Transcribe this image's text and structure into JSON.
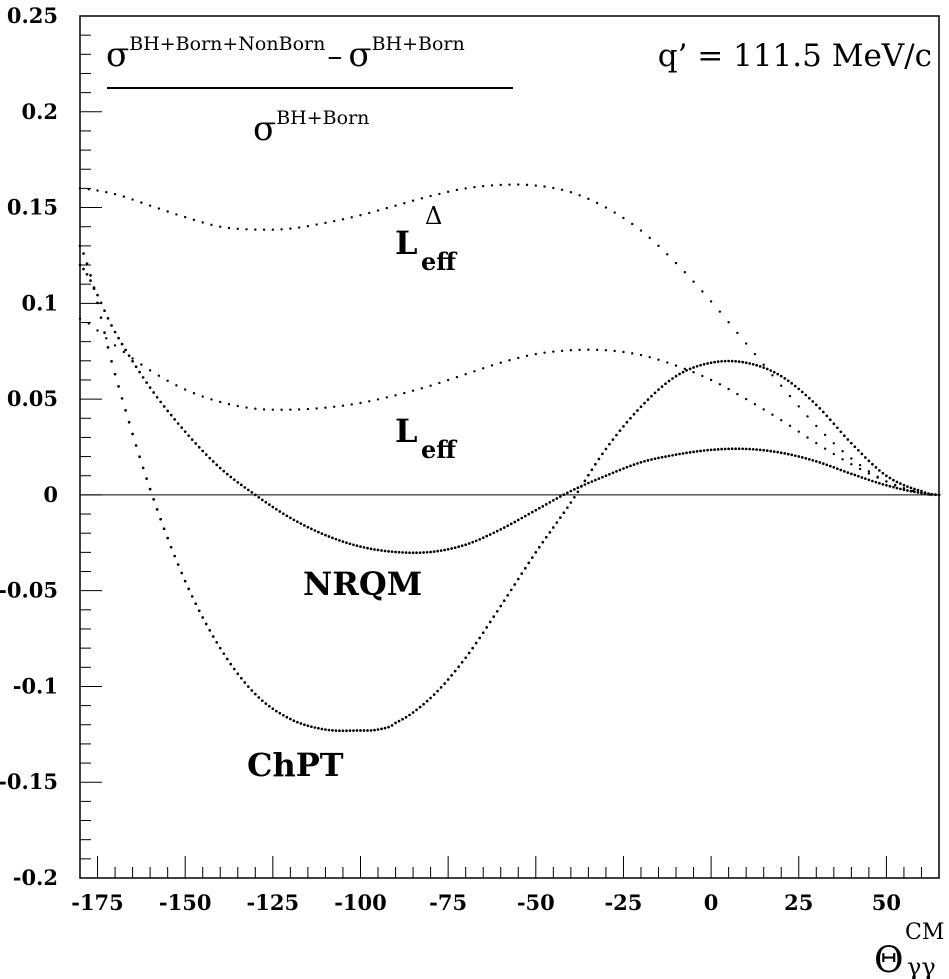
{
  "chart_data": {
    "type": "scatter",
    "xlim": [
      -180,
      65
    ],
    "ylim": [
      -0.2,
      0.25
    ],
    "x_ticks": [
      -175,
      -150,
      -125,
      -100,
      -75,
      -50,
      -25,
      0,
      25,
      50
    ],
    "x_tick_labels": [
      "-175",
      "-150",
      "-125",
      "-100",
      "-75",
      "-50",
      "-25",
      "0",
      "25",
      "50"
    ],
    "y_ticks": [
      -0.2,
      -0.15,
      -0.1,
      -0.05,
      0,
      0.05,
      0.1,
      0.15,
      0.2,
      0.25
    ],
    "y_tick_labels": [
      "-0.2",
      "-0.15",
      "-0.1",
      "-0.05",
      "0",
      "0.05",
      "0.1",
      "0.15",
      "0.2",
      "0.25"
    ],
    "xlabel": {
      "symbol": "Θ",
      "superscript": "CM",
      "subscript": "γγ"
    },
    "ylabel": {
      "numerator_a": "σ",
      "numerator_a_sup": "BH+Born+NonBorn",
      "minus": "–",
      "numerator_b": "σ",
      "numerator_b_sup": "BH+Born",
      "denominator": "σ",
      "denominator_sup": "BH+Born"
    },
    "annotation": "q’ = 111.5 MeV/c",
    "zero_line": true,
    "series": [
      {
        "name": "L_eff^Δ",
        "label_main": "L",
        "label_sub": "eff",
        "label_sup": "Δ",
        "x": [
          -180,
          -170,
          -160,
          -150,
          -140,
          -130,
          -120,
          -110,
          -100,
          -90,
          -80,
          -70,
          -60,
          -50,
          -40,
          -30,
          -20,
          -10,
          0,
          10,
          20,
          30,
          40,
          50,
          60,
          65
        ],
        "y": [
          0.16,
          0.157,
          0.151,
          0.145,
          0.14,
          0.1385,
          0.139,
          0.142,
          0.146,
          0.151,
          0.156,
          0.16,
          0.1618,
          0.1615,
          0.158,
          0.15,
          0.138,
          0.121,
          0.101,
          0.079,
          0.057,
          0.036,
          0.019,
          0.007,
          0.001,
          0.0
        ]
      },
      {
        "name": "L_eff",
        "label_main": "L",
        "label_sub": "eff",
        "x": [
          -180,
          -170,
          -160,
          -150,
          -140,
          -130,
          -120,
          -110,
          -100,
          -90,
          -80,
          -70,
          -60,
          -50,
          -40,
          -30,
          -20,
          -10,
          0,
          10,
          20,
          30,
          40,
          50,
          60,
          65
        ],
        "y": [
          0.092,
          0.078,
          0.065,
          0.055,
          0.0485,
          0.045,
          0.0445,
          0.0455,
          0.048,
          0.052,
          0.057,
          0.063,
          0.069,
          0.0735,
          0.0755,
          0.0755,
          0.073,
          0.0675,
          0.06,
          0.05,
          0.039,
          0.027,
          0.016,
          0.007,
          0.001,
          0.0
        ]
      },
      {
        "name": "NRQM",
        "x": [
          -180,
          -170,
          -160,
          -150,
          -140,
          -130,
          -120,
          -110,
          -100,
          -90,
          -80,
          -70,
          -60,
          -50,
          -40,
          -30,
          -20,
          -10,
          0,
          10,
          20,
          30,
          40,
          50,
          60,
          65
        ],
        "y": [
          0.12,
          0.085,
          0.056,
          0.033,
          0.014,
          0.0,
          -0.012,
          -0.021,
          -0.027,
          -0.0298,
          -0.0298,
          -0.026,
          -0.018,
          -0.008,
          0.002,
          0.01,
          0.017,
          0.021,
          0.0235,
          0.024,
          0.022,
          0.0175,
          0.011,
          0.005,
          0.001,
          0.0
        ]
      },
      {
        "name": "ChPT",
        "x": [
          -180,
          -170,
          -160,
          -150,
          -140,
          -130,
          -120,
          -110,
          -100,
          -95,
          -90,
          -80,
          -70,
          -60,
          -50,
          -40,
          -30,
          -20,
          -10,
          0,
          10,
          20,
          30,
          40,
          50,
          60,
          65
        ],
        "y": [
          0.13,
          0.063,
          0.003,
          -0.045,
          -0.08,
          -0.104,
          -0.117,
          -0.1225,
          -0.123,
          -0.1225,
          -0.119,
          -0.106,
          -0.085,
          -0.058,
          -0.03,
          -0.004,
          0.024,
          0.046,
          0.062,
          0.069,
          0.069,
          0.062,
          0.047,
          0.027,
          0.01,
          0.002,
          0.0
        ]
      }
    ]
  }
}
